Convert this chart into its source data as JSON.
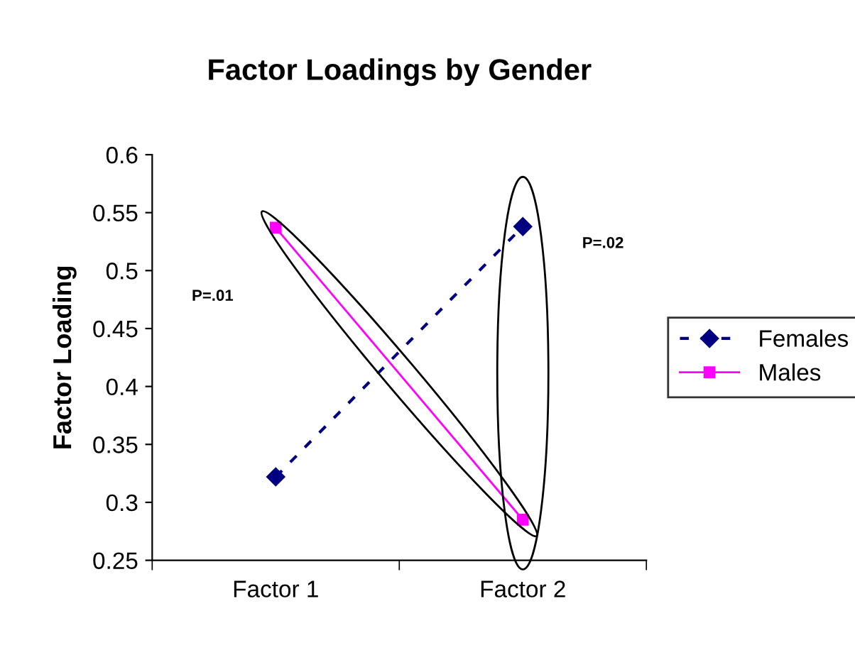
{
  "chart_data": {
    "type": "line",
    "title": "Factor Loadings by Gender",
    "ylabel": "Factor Loading",
    "categories": [
      "Factor 1",
      "Factor 2"
    ],
    "series": [
      {
        "name": "Females",
        "color": "#000080",
        "values": [
          0.322,
          0.538
        ],
        "marker": "diamond",
        "line_style": "dashed"
      },
      {
        "name": "Males",
        "color": "#ff00ff",
        "values": [
          0.537,
          0.285
        ],
        "marker": "square",
        "line_style": "solid"
      }
    ],
    "ylim": [
      0.25,
      0.6
    ],
    "yticks": [
      0.25,
      0.3,
      0.35,
      0.4,
      0.45,
      0.5,
      0.55,
      0.6
    ],
    "annotations": [
      "P=.01",
      "P=.02"
    ],
    "grid": false,
    "legend": "right"
  }
}
